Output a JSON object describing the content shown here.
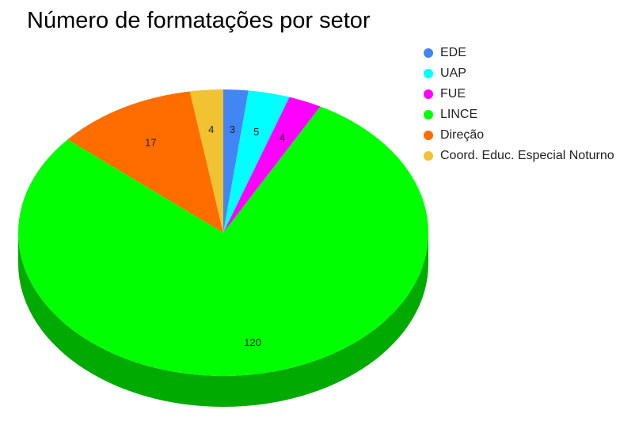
{
  "chart_data": {
    "type": "pie",
    "title": "Número de formatações por setor",
    "categories": [
      "EDE",
      "UAP",
      "FUE",
      "LINCE",
      "Direção",
      "Coord. Educ. Especial Noturno"
    ],
    "values": [
      3,
      5,
      4,
      120,
      17,
      4
    ],
    "colors": [
      "#4285f4",
      "#00ffff",
      "#ff00ff",
      "#00ff00",
      "#ff6d00",
      "#f1c232"
    ],
    "side_colors": [
      "#2a5bb0",
      "#00b0b0",
      "#b000b0",
      "#00aa00",
      "#b04a00",
      "#b08a20"
    ],
    "style": "3d",
    "legend_position": "right"
  }
}
